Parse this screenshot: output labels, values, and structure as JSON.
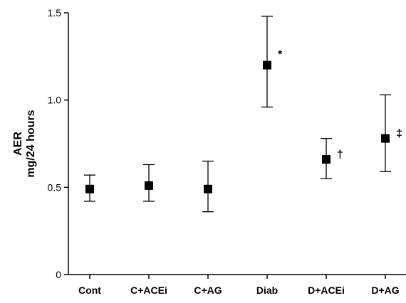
{
  "chart_data": {
    "type": "scatter",
    "title": "",
    "xlabel": "",
    "ylabel_line1": "AER",
    "ylabel_line2": "mg/24 hours",
    "ylim": [
      0,
      1.5
    ],
    "yticks": [
      0,
      0.5,
      1.0,
      1.5
    ],
    "ytick_labels": [
      "0",
      "0.5",
      "1.0",
      "1.5"
    ],
    "grid": false,
    "categories": [
      "Cont",
      "C+ACEi",
      "C+AG",
      "Diab",
      "D+ACEi",
      "D+AG"
    ],
    "values": [
      0.49,
      0.51,
      0.49,
      1.2,
      0.66,
      0.78
    ],
    "error_upper": [
      0.57,
      0.63,
      0.65,
      1.48,
      0.78,
      1.03
    ],
    "error_lower": [
      0.42,
      0.42,
      0.36,
      0.96,
      0.55,
      0.59
    ],
    "annotations": [
      "",
      "",
      "",
      "*",
      "†",
      "‡"
    ],
    "marker_color": "#000000"
  }
}
